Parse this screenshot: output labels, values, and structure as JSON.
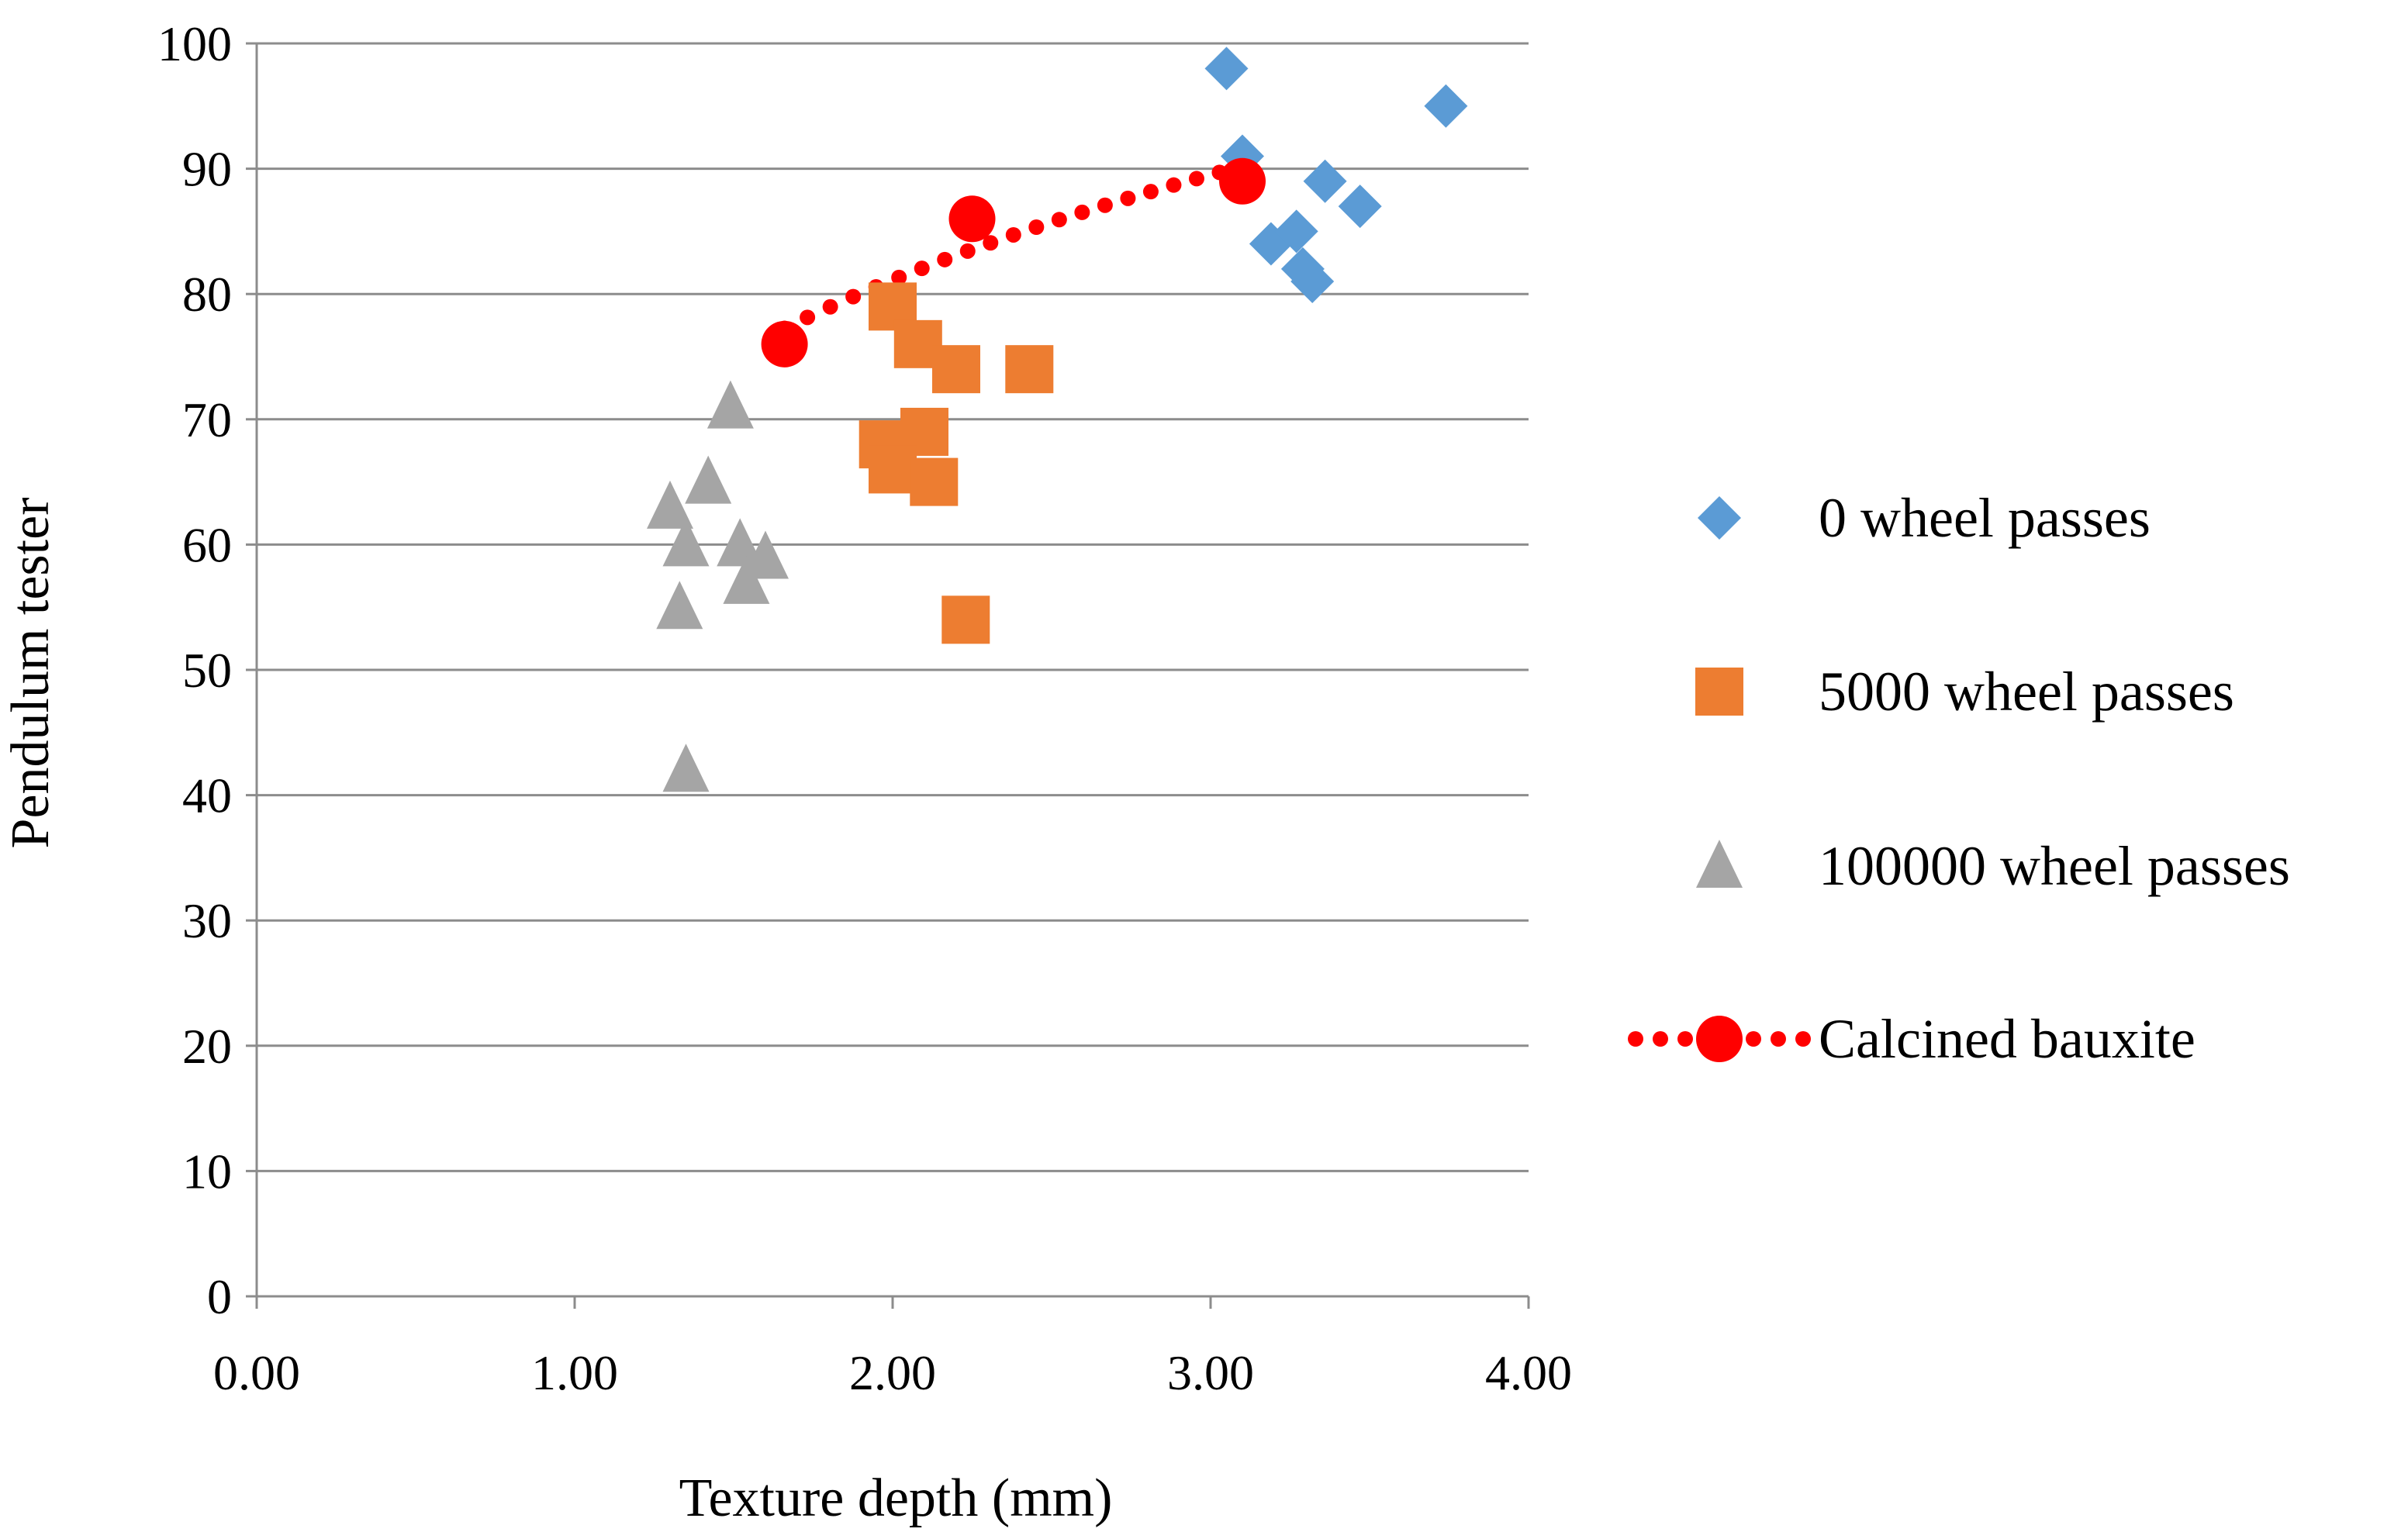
{
  "chart_data": {
    "type": "scatter",
    "title": "",
    "xlabel": "Texture depth (mm)",
    "ylabel": "Pendulum tester",
    "xlim": [
      0,
      4
    ],
    "ylim": [
      0,
      100
    ],
    "grid": "horizontal",
    "legend_position": "right",
    "x_ticks": [
      "0.00",
      "1.00",
      "2.00",
      "3.00",
      "4.00"
    ],
    "y_ticks": [
      "0",
      "10",
      "20",
      "30",
      "40",
      "50",
      "60",
      "70",
      "80",
      "90",
      "100"
    ],
    "series": [
      {
        "name": "0 wheel passes",
        "marker": "diamond",
        "color": "#5b9bd5",
        "points": [
          [
            3.05,
            98
          ],
          [
            3.1,
            91
          ],
          [
            3.36,
            89
          ],
          [
            3.47,
            87
          ],
          [
            3.19,
            84
          ],
          [
            3.27,
            85
          ],
          [
            3.29,
            82
          ],
          [
            3.32,
            81
          ],
          [
            3.74,
            95
          ]
        ]
      },
      {
        "name": "5000 wheel passes",
        "marker": "square",
        "color": "#ed7d31",
        "points": [
          [
            2.0,
            79
          ],
          [
            2.08,
            76
          ],
          [
            2.2,
            74
          ],
          [
            2.43,
            74
          ],
          [
            1.97,
            68
          ],
          [
            2.1,
            69
          ],
          [
            2.0,
            66
          ],
          [
            2.13,
            65
          ],
          [
            2.23,
            54
          ]
        ]
      },
      {
        "name": "100000 wheel passes",
        "marker": "triangle",
        "color": "#a5a5a5",
        "points": [
          [
            1.49,
            71
          ],
          [
            1.42,
            65
          ],
          [
            1.3,
            63
          ],
          [
            1.35,
            60
          ],
          [
            1.52,
            60
          ],
          [
            1.6,
            59
          ],
          [
            1.54,
            57
          ],
          [
            1.33,
            55
          ],
          [
            1.35,
            42
          ]
        ]
      },
      {
        "name": "Calcined bauxite",
        "marker": "circle",
        "line": "dotted",
        "color": "#ff0000",
        "points": [
          [
            1.66,
            76
          ],
          [
            2.25,
            86
          ],
          [
            3.1,
            89
          ]
        ]
      }
    ]
  }
}
